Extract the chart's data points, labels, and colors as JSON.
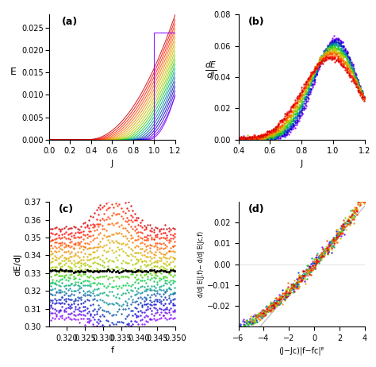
{
  "fig_width": 4.74,
  "fig_height": 4.62,
  "dpi": 100,
  "bg_color": "#ffffff",
  "panel_a": {
    "label": "(a)",
    "xlabel": "J",
    "ylabel": "E",
    "xlim": [
      0.0,
      1.2
    ],
    "ylim": [
      0.0,
      0.028
    ],
    "yticks": [
      0.0,
      0.005,
      0.01,
      0.015,
      0.02,
      0.025
    ],
    "xticks": [
      0.0,
      0.2,
      0.4,
      0.6,
      0.8,
      1.0,
      1.2
    ]
  },
  "panel_b": {
    "label": "(b)",
    "xlabel": "J",
    "ylabel": "dE\ndJ",
    "xlim": [
      0.4,
      1.2
    ],
    "ylim": [
      0.0,
      0.08
    ],
    "yticks": [
      0.0,
      0.02,
      0.04,
      0.06,
      0.08
    ],
    "xticks": [
      0.4,
      0.6,
      0.8,
      1.0,
      1.2
    ]
  },
  "panel_c": {
    "label": "(c)",
    "xlabel": "f",
    "ylabel": "dE/dJ",
    "xlim": [
      0.315,
      0.35
    ],
    "ylim": [
      0.3,
      0.37
    ],
    "yticks": [
      0.3,
      0.31,
      0.32,
      0.33,
      0.34,
      0.35,
      0.36,
      0.37
    ],
    "xticks": [
      0.32,
      0.325,
      0.33,
      0.335,
      0.34,
      0.345,
      0.35
    ],
    "f_critical": 0.3333
  },
  "panel_d": {
    "label": "(d)",
    "xlabel": "(J−Jᴄ)|f−fᴄ|ᴱ",
    "ylabel": "d/dJ E(J,f)− d/dJ E(Jᴄ,f)",
    "xlim": [
      -6,
      4
    ],
    "ylim": [
      -0.03,
      0.03
    ],
    "yticks": [
      -0.02,
      -0.01,
      0.0,
      0.01,
      0.02
    ],
    "xticks": [
      -6,
      -4,
      -2,
      0,
      2,
      4
    ]
  },
  "n_curves": 20,
  "colors_rainbow": [
    "#8800ff",
    "#6600ee",
    "#3300dd",
    "#0000cc",
    "#0022bb",
    "#0055aa",
    "#008899",
    "#00aa77",
    "#00cc44",
    "#44cc00",
    "#88cc00",
    "#aacc00",
    "#ccbb00",
    "#ddaa00",
    "#ee8800",
    "#ff6600",
    "#ff4400",
    "#ff2200",
    "#ff0000",
    "#cc0000"
  ]
}
